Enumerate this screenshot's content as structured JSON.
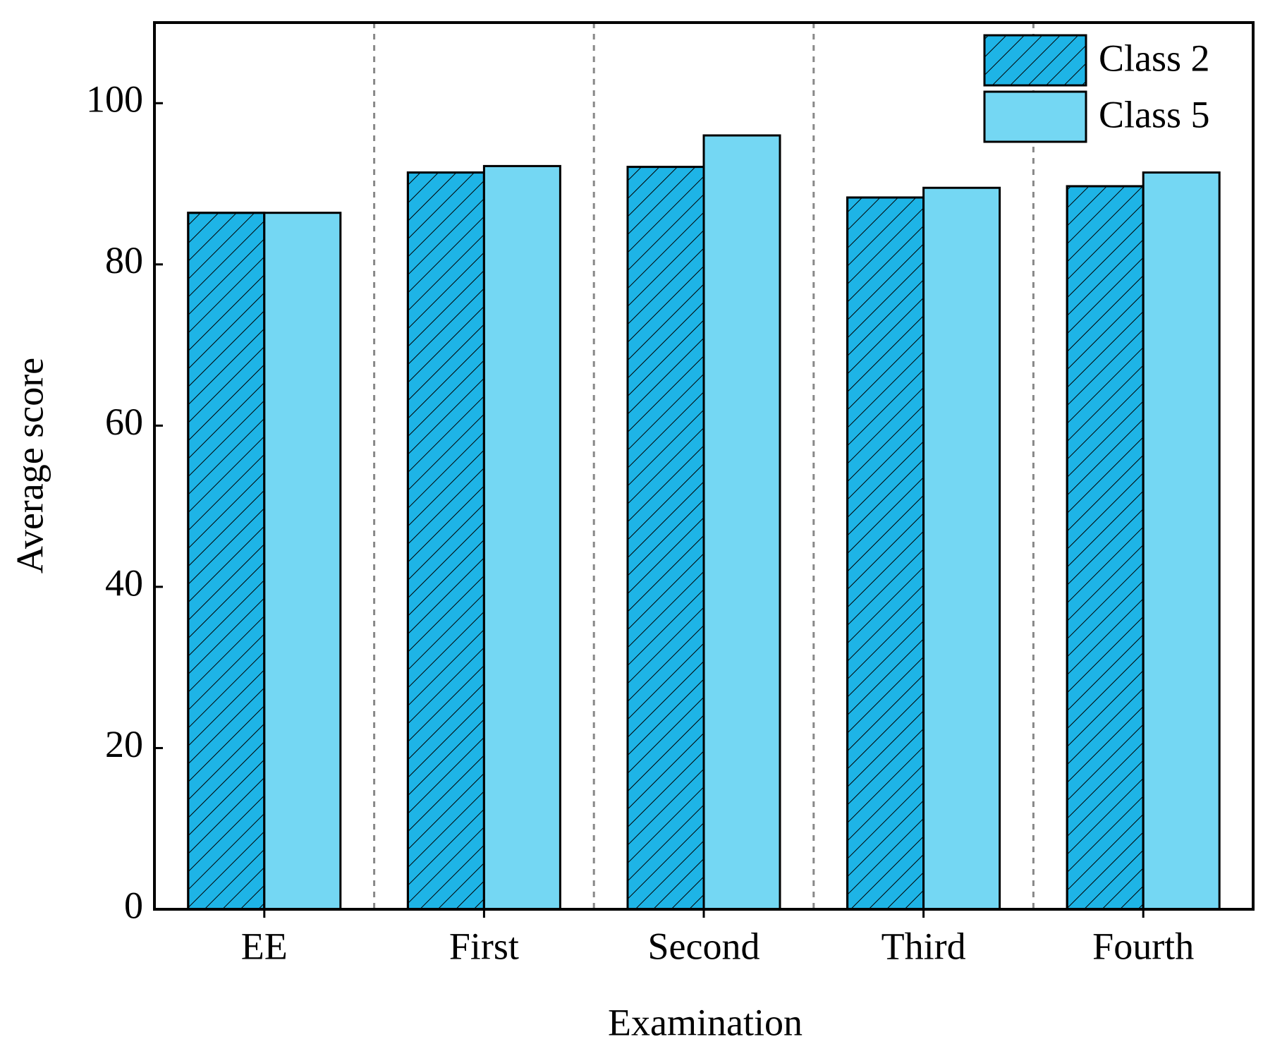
{
  "chart_data": {
    "type": "bar",
    "x_label": "Examination",
    "y_label": "Average score",
    "categories": [
      "EE",
      "First",
      "Second",
      "Third",
      "Fourth"
    ],
    "series": [
      {
        "name": "Class 2",
        "color": "#1eb4e6",
        "hatch": true,
        "values": [
          86.4,
          91.4,
          92.1,
          88.3,
          89.7
        ]
      },
      {
        "name": "Class 5",
        "color": "#74d7f3",
        "hatch": false,
        "values": [
          86.4,
          92.2,
          96.0,
          89.5,
          91.4
        ]
      }
    ],
    "ylim": [
      0,
      110
    ],
    "yticks": [
      0,
      20,
      40,
      60,
      80,
      100
    ],
    "legend": "upper right",
    "category_separators": true
  }
}
